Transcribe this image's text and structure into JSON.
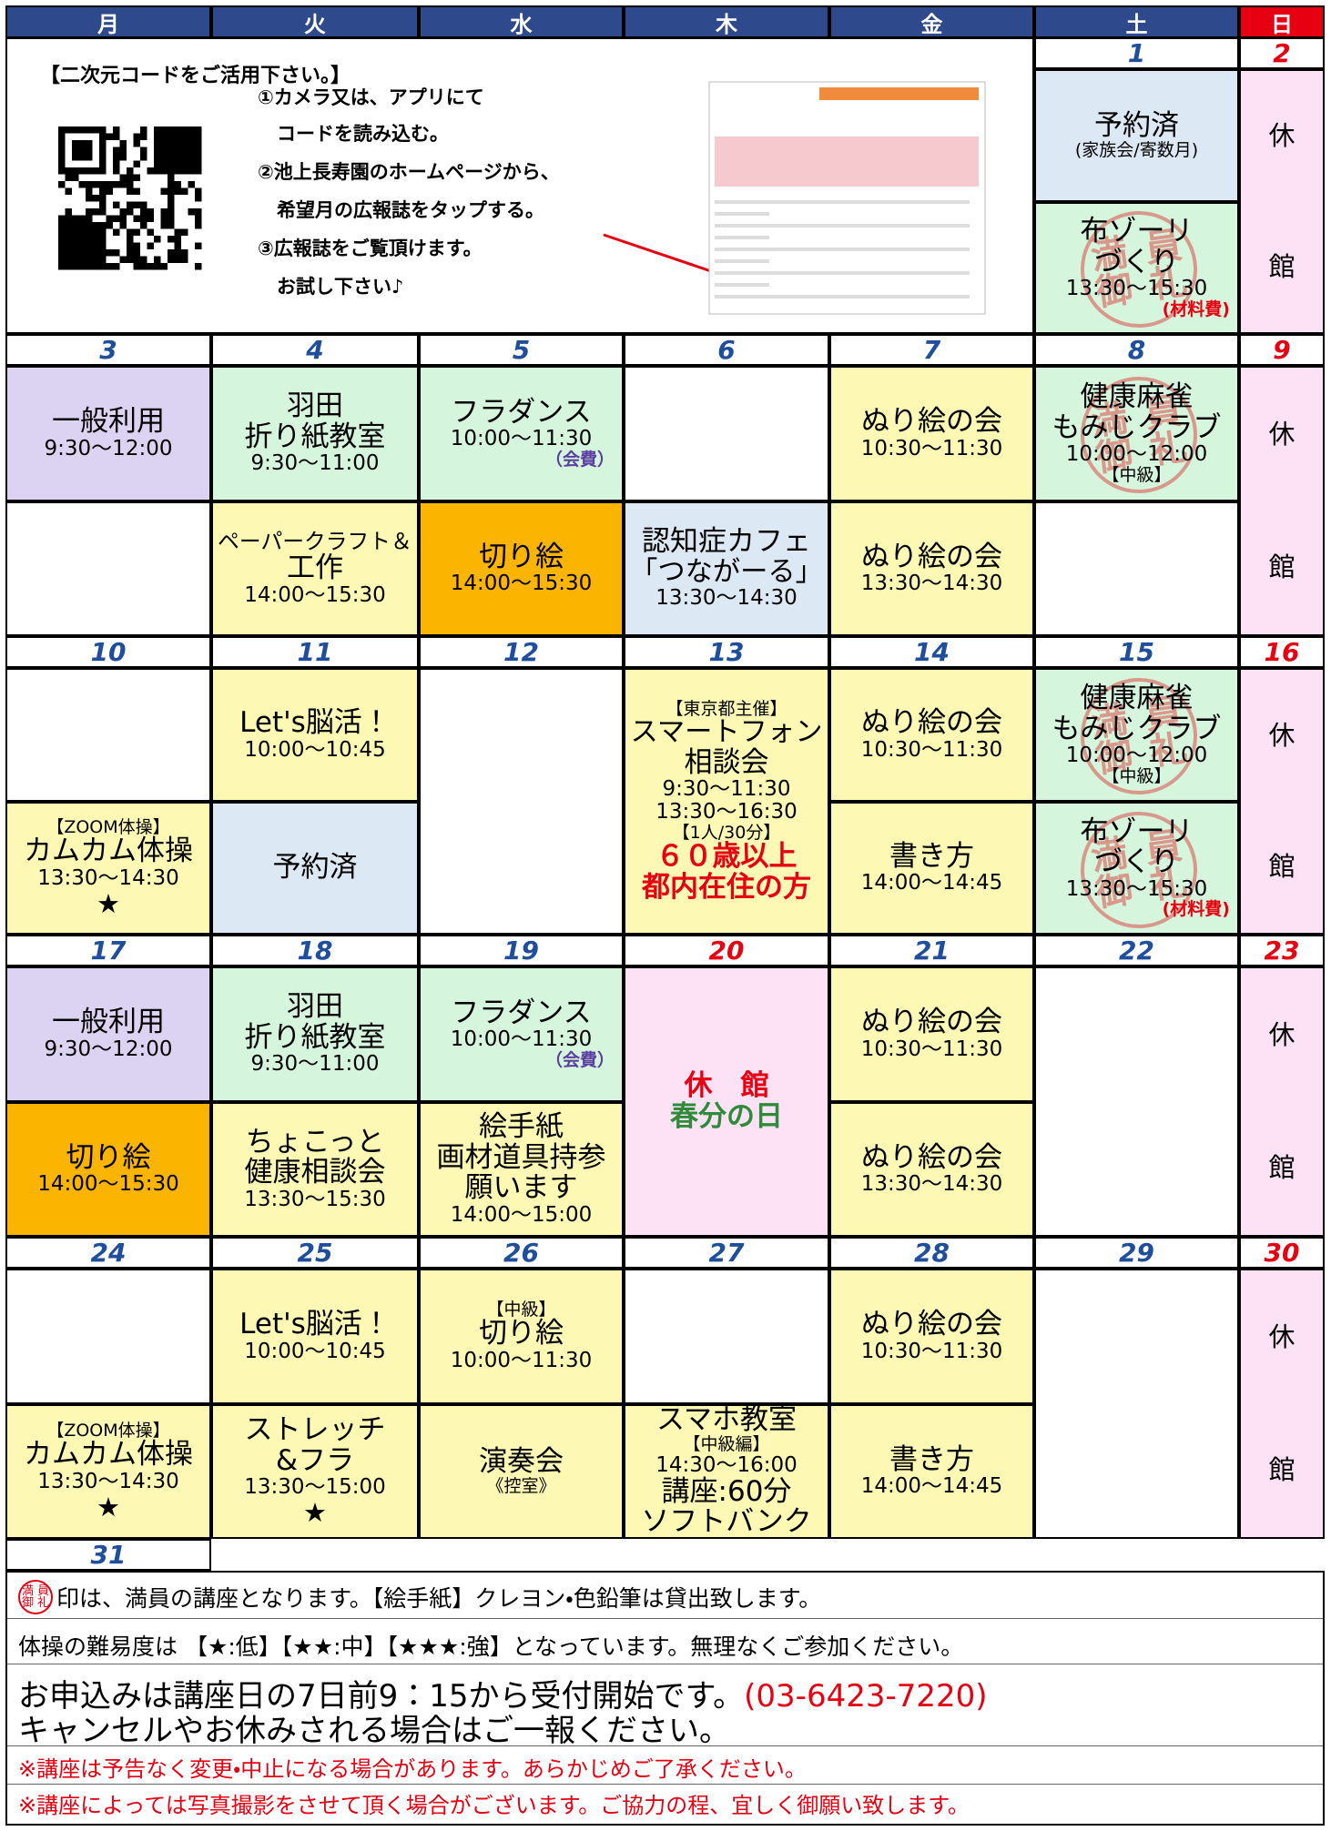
{
  "weekdays": [
    "月",
    "火",
    "水",
    "木",
    "金",
    "土",
    "日"
  ],
  "intro": {
    "title": "【二次元コードをご活用下さい。】",
    "steps": [
      "①カメラ又は、アプリにて",
      "　コードを読み込む。",
      "②池上長寿園のホームページから、",
      "　希望月の広報誌をタップする。",
      "③広報誌をご覧頂けます。",
      "　お試し下さい♪"
    ]
  },
  "weeks": [
    {
      "dates": [
        null,
        null,
        null,
        null,
        null,
        1,
        2
      ],
      "columns": [
        null,
        null,
        null,
        null,
        null,
        [
          {
            "color": "#dce8f4",
            "lines": [
              "予約済",
              "(家族会/寄数月)"
            ]
          },
          {
            "color": "#d6f5dd",
            "stamp": "満員御礼",
            "lines": [
              "布ゾーリ",
              "づくり",
              "13:30～15:30",
              {
                "text": "(材料費)",
                "color": "#e60012"
              }
            ]
          }
        ],
        [
          {
            "color": "#fde2f6",
            "lines": [
              "休",
              "館"
            ]
          }
        ]
      ]
    },
    {
      "dates": [
        3,
        4,
        5,
        6,
        7,
        8,
        9
      ],
      "columns": [
        [
          {
            "color": "#dcd3f2",
            "lines": [
              "一般利用",
              "9:30～12:00"
            ]
          },
          {
            "color": "#ffffff",
            "lines": []
          }
        ],
        [
          {
            "color": "#d6f5dd",
            "lines": [
              "羽田",
              "折り紙教室",
              "9:30～11:00"
            ]
          },
          {
            "color": "#fdf8b3",
            "lines": [
              "ペーパークラフト＆",
              "工作",
              "14:00～15:30"
            ]
          }
        ],
        [
          {
            "color": "#d6f5dd",
            "lines": [
              "フラダンス",
              "10:00～11:30",
              {
                "text": "（会費）",
                "color": "#5b3fa0"
              }
            ]
          },
          {
            "color": "#fbb400",
            "lines": [
              "切り絵",
              "14:00～15:30"
            ]
          }
        ],
        [
          {
            "color": "#ffffff",
            "lines": []
          },
          {
            "color": "#dce8f4",
            "lines": [
              "認知症カフェ",
              "「つながーる」",
              "13:30～14:30"
            ]
          }
        ],
        [
          {
            "color": "#fdf8b3",
            "lines": [
              "ぬり絵の会",
              "10:30～11:30"
            ]
          },
          {
            "color": "#fdf8b3",
            "lines": [
              "ぬり絵の会",
              "13:30～14:30"
            ]
          }
        ],
        [
          {
            "color": "#d6f5dd",
            "stamp": "満員御礼",
            "lines": [
              "健康麻雀",
              "もみじクラブ",
              "10:00～12:00",
              "【中級】"
            ]
          },
          {
            "color": "#ffffff",
            "lines": []
          }
        ],
        [
          {
            "color": "#fde2f6",
            "lines": [
              "休",
              "館"
            ]
          }
        ]
      ]
    },
    {
      "dates": [
        10,
        11,
        12,
        13,
        14,
        15,
        16
      ],
      "columns": [
        [
          {
            "color": "#ffffff",
            "lines": []
          },
          {
            "color": "#fdf8b3",
            "lines": [
              "【ZOOM体操】",
              "カムカム体操",
              "13:30～14:30",
              "★"
            ]
          }
        ],
        [
          {
            "color": "#fdf8b3",
            "lines": [
              "Let's脳活！",
              "10:00～10:45"
            ]
          },
          {
            "color": "#dce8f4",
            "lines": [
              "予約済"
            ]
          }
        ],
        [
          {
            "color": "#ffffff",
            "lines": []
          }
        ],
        [
          {
            "color": "#fdf8b3",
            "lines": [
              "【東京都主催】",
              "スマートフォン",
              "相談会",
              "9:30～11:30",
              "13:30～16:30",
              "【1人/30分】",
              {
                "text": "６０歳以上",
                "color": "#e60012"
              },
              {
                "text": "都内在住の方",
                "color": "#e60012"
              }
            ]
          }
        ],
        [
          {
            "color": "#fdf8b3",
            "lines": [
              "ぬり絵の会",
              "10:30～11:30"
            ]
          },
          {
            "color": "#fdf8b3",
            "lines": [
              "書き方",
              "14:00～14:45"
            ]
          }
        ],
        [
          {
            "color": "#d6f5dd",
            "stamp": "満員御礼",
            "lines": [
              "健康麻雀",
              "もみじクラブ",
              "10:00～12:00",
              "【中級】"
            ]
          },
          {
            "color": "#d6f5dd",
            "stamp": "満員御礼",
            "lines": [
              "布ゾーリ",
              "づくり",
              "13:30～15:30",
              {
                "text": "(材料費)",
                "color": "#e60012"
              }
            ]
          }
        ],
        [
          {
            "color": "#fde2f6",
            "lines": [
              "休",
              "館"
            ]
          }
        ]
      ]
    },
    {
      "dates": [
        17,
        18,
        19,
        20,
        21,
        22,
        23
      ],
      "columns": [
        [
          {
            "color": "#dcd3f2",
            "lines": [
              "一般利用",
              "9:30～12:00"
            ]
          },
          {
            "color": "#fbb400",
            "lines": [
              "切り絵",
              "14:00～15:30"
            ]
          }
        ],
        [
          {
            "color": "#d6f5dd",
            "lines": [
              "羽田",
              "折り紙教室",
              "9:30～11:00"
            ]
          },
          {
            "color": "#fdf8b3",
            "lines": [
              "ちょこっと",
              "健康相談会",
              "13:30～15:30"
            ]
          }
        ],
        [
          {
            "color": "#d6f5dd",
            "lines": [
              "フラダンス",
              "10:00～11:30",
              {
                "text": "（会費）",
                "color": "#5b3fa0"
              }
            ]
          },
          {
            "color": "#fdf8b3",
            "lines": [
              "絵手紙",
              "画材道具持参",
              "願います",
              "14:00～15:00"
            ]
          }
        ],
        [
          {
            "color": "#fde2f6",
            "lines": [
              {
                "text": "休　館",
                "color": "#e60012"
              },
              {
                "text": "春分の日",
                "color": "#2e8b3a"
              }
            ]
          }
        ],
        [
          {
            "color": "#fdf8b3",
            "lines": [
              "ぬり絵の会",
              "10:30～11:30"
            ]
          },
          {
            "color": "#fdf8b3",
            "lines": [
              "ぬり絵の会",
              "13:30～14:30"
            ]
          }
        ],
        [
          {
            "color": "#ffffff",
            "lines": []
          }
        ],
        [
          {
            "color": "#fde2f6",
            "lines": [
              "休",
              "館"
            ]
          }
        ]
      ]
    },
    {
      "dates": [
        24,
        25,
        26,
        27,
        28,
        29,
        30
      ],
      "columns": [
        [
          {
            "color": "#ffffff",
            "lines": []
          },
          {
            "color": "#fdf8b3",
            "lines": [
              "【ZOOM体操】",
              "カムカム体操",
              "13:30～14:30",
              "★"
            ]
          }
        ],
        [
          {
            "color": "#fdf8b3",
            "lines": [
              "Let's脳活！",
              "10:00～10:45"
            ]
          },
          {
            "color": "#fdf8b3",
            "lines": [
              "ストレッチ",
              "&フラ",
              "13:30～15:00",
              "★"
            ]
          }
        ],
        [
          {
            "color": "#fdf8b3",
            "lines": [
              "【中級】",
              "切り絵",
              "10:00～11:30"
            ]
          },
          {
            "color": "#fdf8b3",
            "lines": [
              "演奏会",
              "《控室》"
            ]
          }
        ],
        [
          {
            "color": "#ffffff",
            "lines": []
          },
          {
            "color": "#fdf8b3",
            "lines": [
              "スマホ教室",
              "【中級編】",
              "14:30～16:00",
              "講座:60分",
              "ソフトバンク"
            ]
          }
        ],
        [
          {
            "color": "#fdf8b3",
            "lines": [
              "ぬり絵の会",
              "10:30～11:30"
            ]
          },
          {
            "color": "#fdf8b3",
            "lines": [
              "書き方",
              "14:00～14:45"
            ]
          }
        ],
        [
          {
            "color": "#ffffff",
            "lines": []
          }
        ],
        [
          {
            "color": "#fde2f6",
            "lines": [
              "休",
              "館"
            ]
          }
        ]
      ]
    }
  ],
  "last_date": 31,
  "footer": {
    "mark": "満員御礼",
    "note1": "印は、満員の講座となります。【絵手紙】クレヨン・色鉛筆は貸出致します。",
    "note2": "体操の難易度は 【★:低】【★★:中】【★★★:強】となっています。無理なくご参加ください。",
    "apply": "お申込みは講座日の7日前9：15から受付開始です。",
    "phone": "(03-6423-7220)",
    "cancel": "キャンセルやお休みされる場合はご一報ください。",
    "warnings": [
      "※講座は予告なく変更・中止になる場合があります。あらかじめご了承ください。",
      "※講座によっては写真撮影をさせて頂く場合がございます。ご協力の程、宜しく御願い致します。"
    ]
  }
}
